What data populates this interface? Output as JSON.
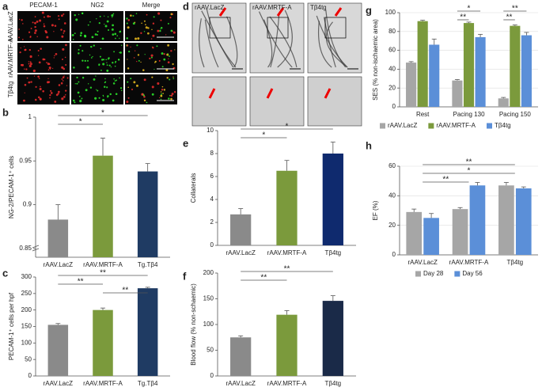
{
  "panel_a": {
    "letter": "a",
    "columns": [
      "PECAM-1",
      "NG2",
      "Merge"
    ],
    "rows": [
      "rAAV.LacZ",
      "rAAV.MRTF-A",
      "Tβ4tg"
    ]
  },
  "panel_d": {
    "letter": "d",
    "columns": [
      "rAAV.LacZ",
      "rAAV.MRTF-A",
      "Tβ4tg"
    ]
  },
  "chart_data": [
    {
      "type": "bar",
      "panel": "b",
      "ylabel": "NG-2/PECAM-1⁺ cells",
      "categories": [
        "rAAV.LacZ",
        "rAAV.MRTF-A",
        "Tg.Tβ4"
      ],
      "values": [
        0.883,
        0.956,
        0.938
      ],
      "errors": [
        0.017,
        0.02,
        0.009
      ],
      "colors": [
        "#8a8a8a",
        "#7b9a3c",
        "#1f3b63"
      ],
      "ylim": [
        0.84,
        1
      ],
      "yticks": [
        0.85,
        0.9,
        0.95,
        1
      ],
      "brackets": [
        {
          "from": 0,
          "to": 2,
          "label": "*"
        },
        {
          "from": 0,
          "to": 1,
          "label": "*"
        }
      ]
    },
    {
      "type": "bar",
      "panel": "c",
      "ylabel": "PECAM-1⁺ cells per hpf",
      "categories": [
        "rAAV.LacZ",
        "rAAV.MRTF-A",
        "Tg.Tβ4"
      ],
      "values": [
        155,
        200,
        266
      ],
      "errors": [
        4,
        6,
        3
      ],
      "colors": [
        "#8a8a8a",
        "#7b9a3c",
        "#1f3b63"
      ],
      "ylim": [
        0,
        300
      ],
      "yticks": [
        0,
        50,
        100,
        150,
        200,
        250,
        300
      ],
      "brackets": [
        {
          "from": 0,
          "to": 2,
          "label": "**"
        },
        {
          "from": 0,
          "to": 1,
          "label": "**"
        },
        {
          "from": 1,
          "to": 2,
          "label": "**"
        }
      ]
    },
    {
      "type": "bar",
      "panel": "e",
      "ylabel": "Collaterals",
      "categories": [
        "rAAV.LacZ",
        "rAAV.MRTF-A",
        "Tβ4tg"
      ],
      "values": [
        2.7,
        6.5,
        8.0
      ],
      "errors": [
        0.5,
        0.9,
        1.0
      ],
      "colors": [
        "#8a8a8a",
        "#7b9a3c",
        "#0f2a6e"
      ],
      "ylim": [
        0,
        10
      ],
      "yticks": [
        0,
        2,
        4,
        6,
        8,
        10
      ],
      "brackets": [
        {
          "from": 0,
          "to": 2,
          "label": "*"
        },
        {
          "from": 0,
          "to": 1,
          "label": "*"
        }
      ]
    },
    {
      "type": "bar",
      "panel": "f",
      "ylabel": "Blood flow (% non-schaemic)",
      "categories": [
        "rAAV.LacZ",
        "rAAV.MRTF-A",
        "Tβ4tg"
      ],
      "values": [
        75,
        119,
        146
      ],
      "errors": [
        3,
        8,
        10
      ],
      "colors": [
        "#8a8a8a",
        "#7b9a3c",
        "#1a2a48"
      ],
      "ylim": [
        0,
        200
      ],
      "yticks": [
        0,
        50,
        100,
        150,
        200
      ],
      "brackets": [
        {
          "from": 0,
          "to": 2,
          "label": "**"
        },
        {
          "from": 0,
          "to": 1,
          "label": "**"
        }
      ]
    },
    {
      "type": "grouped_bar",
      "panel": "g",
      "ylabel": "SES (% non-ischaemic area)",
      "categories": [
        "Rest",
        "Pacing 130",
        "Pacing 150"
      ],
      "series": [
        {
          "name": "rAAV.LacZ",
          "color": "#a6a6a6",
          "values": [
            47,
            28,
            9
          ],
          "errors": [
            1,
            1,
            1
          ]
        },
        {
          "name": "rAAV.MRTF-A",
          "color": "#7b9a3c",
          "values": [
            91,
            89,
            86
          ],
          "errors": [
            1,
            1,
            1
          ]
        },
        {
          "name": "Tβ4tg",
          "color": "#5b8fd8",
          "values": [
            66,
            74,
            76
          ],
          "errors": [
            6,
            3,
            3
          ]
        }
      ],
      "ylim": [
        0,
        100
      ],
      "yticks": [
        0,
        20,
        40,
        60,
        80,
        100
      ],
      "grid": true,
      "brackets": [
        {
          "category": 1,
          "from": 0,
          "to": 2,
          "label": "*"
        },
        {
          "category": 1,
          "from": 0,
          "to": 1,
          "label": "**"
        },
        {
          "category": 2,
          "from": 0,
          "to": 2,
          "label": "**"
        },
        {
          "category": 2,
          "from": 0,
          "to": 1,
          "label": "**"
        }
      ]
    },
    {
      "type": "grouped_bar",
      "panel": "h",
      "ylabel": "EF (%)",
      "categories": [
        "rAAV.LacZ",
        "rAAV.MRTF-A",
        "Tβ4tg"
      ],
      "series": [
        {
          "name": "Day 28",
          "color": "#a6a6a6",
          "values": [
            29,
            31,
            47
          ],
          "errors": [
            2,
            1,
            2
          ]
        },
        {
          "name": "Day 56",
          "color": "#5b8fd8",
          "values": [
            25,
            47,
            45
          ],
          "errors": [
            3,
            2,
            1
          ]
        }
      ],
      "ylim": [
        0,
        60
      ],
      "yticks": [
        0,
        20,
        40,
        60
      ],
      "grid": true,
      "brackets": [
        {
          "from": 0,
          "to": 2,
          "label": "**"
        },
        {
          "from": 0,
          "to": 2,
          "label": "*"
        },
        {
          "from": 0,
          "to": 1,
          "label": "**"
        }
      ]
    }
  ]
}
